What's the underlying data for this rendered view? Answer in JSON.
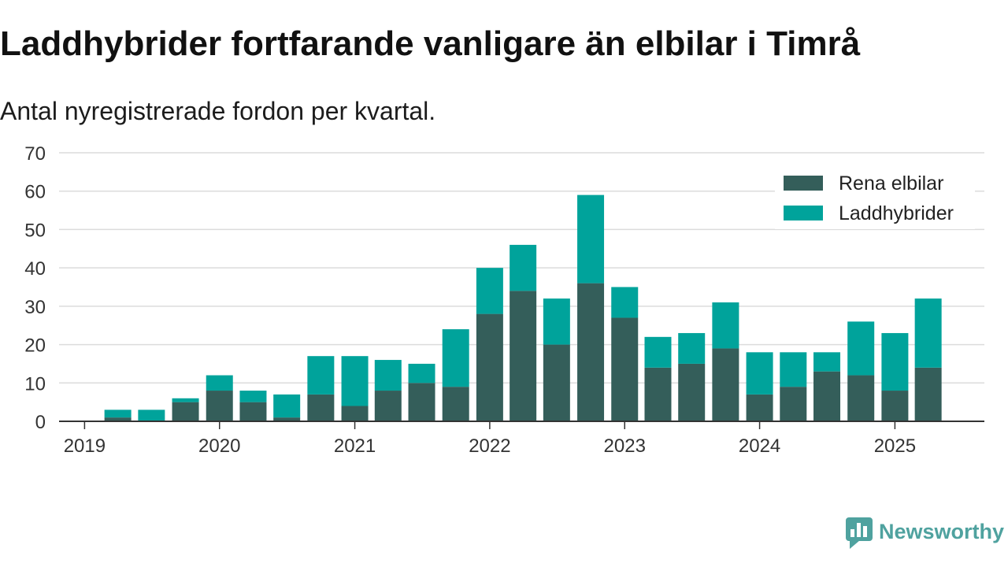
{
  "chart_data": {
    "type": "bar",
    "stacked": true,
    "title": "Laddhybrider fortfarande vanligare än elbilar i Timrå",
    "subtitle": "Antal nyregistrerade fordon per kvartal.",
    "xlabel": "",
    "ylabel": "",
    "x": [
      "2019-04-01",
      "2019-07-01",
      "2019-10-01",
      "2020-01-01",
      "2020-04-01",
      "2020-07-01",
      "2020-10-01",
      "2021-01-01",
      "2021-04-01",
      "2021-07-01",
      "2021-10-01",
      "2022-01-01",
      "2022-04-01",
      "2022-07-01",
      "2022-10-01",
      "2023-01-01",
      "2023-04-01",
      "2023-07-01",
      "2023-10-01",
      "2024-01-01",
      "2024-04-01",
      "2024-07-01",
      "2024-10-01",
      "2025-01-01",
      "2025-04-01"
    ],
    "series": [
      {
        "name": "Rena elbilar",
        "color": "#345e5a",
        "values": [
          1,
          0,
          5,
          8,
          5,
          1,
          7,
          4,
          8,
          10,
          9,
          28,
          34,
          20,
          36,
          27,
          14,
          15,
          19,
          7,
          9,
          13,
          12,
          8,
          14
        ]
      },
      {
        "name": "Laddhybrider",
        "color": "#00a39b",
        "values": [
          2,
          3,
          1,
          4,
          3,
          6,
          10,
          13,
          8,
          5,
          15,
          12,
          12,
          12,
          23,
          8,
          8,
          8,
          12,
          11,
          9,
          5,
          14,
          15,
          18
        ]
      }
    ],
    "xticks": [
      "2019",
      "2020",
      "2021",
      "2022",
      "2023",
      "2024",
      "2025"
    ],
    "yticks": [
      0,
      10,
      20,
      30,
      40,
      50,
      60,
      70
    ],
    "xlim": [
      "2018-10-24",
      "2025-08-31"
    ],
    "ylim": [
      0,
      70
    ],
    "grid": true,
    "legend": "top-right"
  },
  "branding": {
    "logo_text": "Newsworthy",
    "logo_icon": "newsworthy-logo-icon",
    "color": "#4fa29f"
  }
}
